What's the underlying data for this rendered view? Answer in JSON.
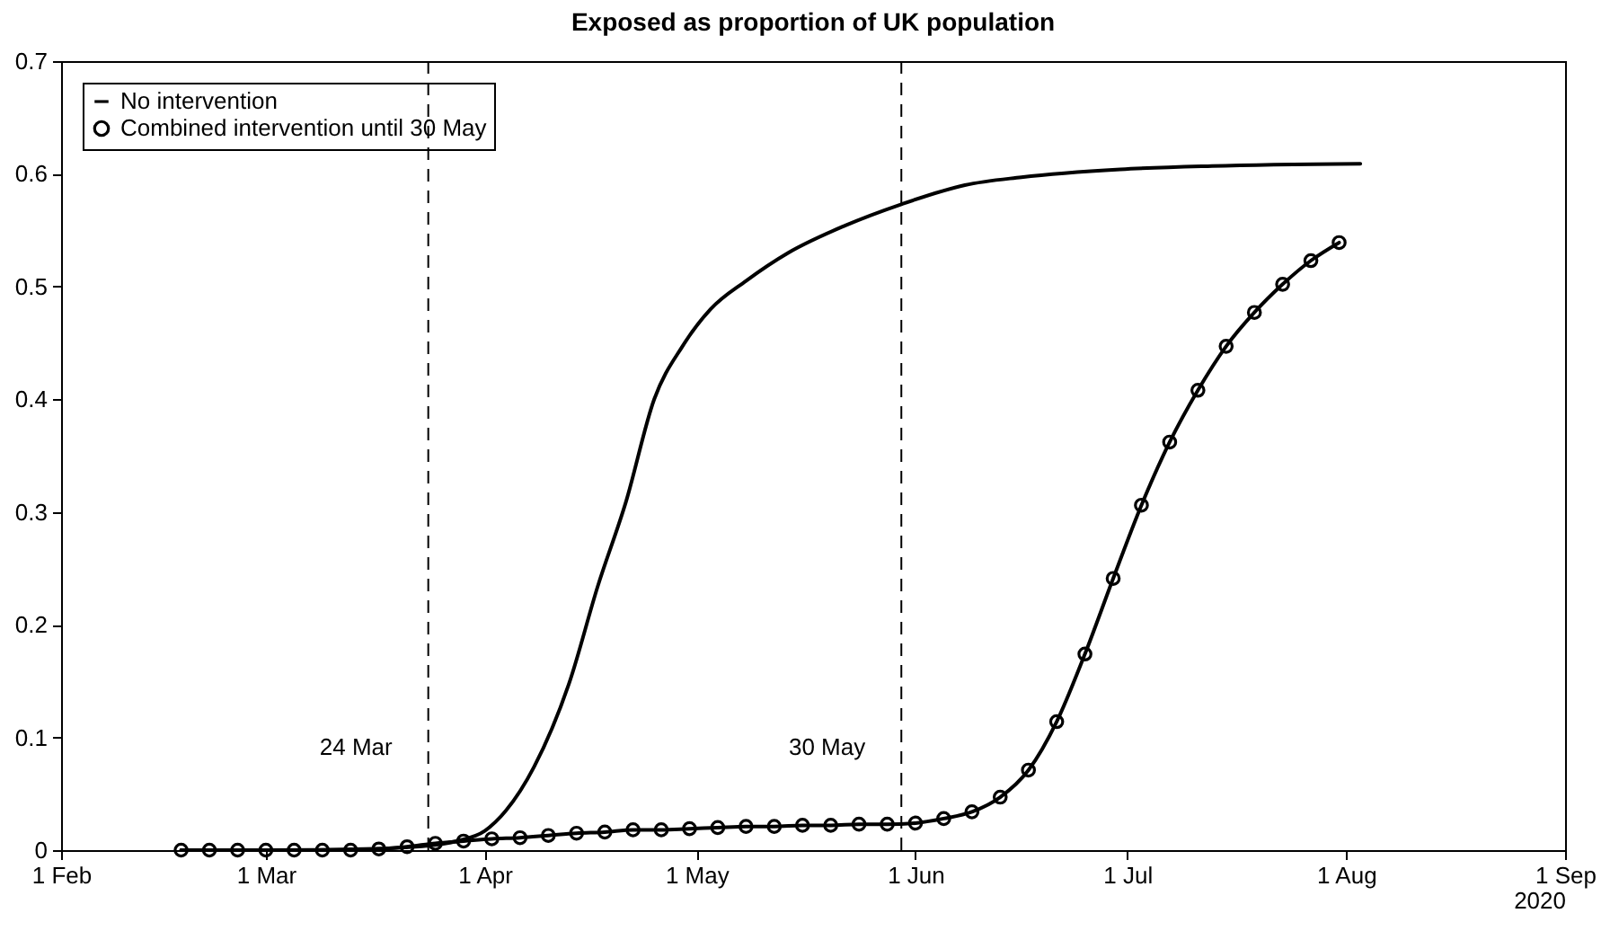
{
  "chart_data": {
    "type": "line",
    "title": "Exposed as proportion of UK population",
    "xlabel": "2020",
    "xlim": [
      "2020-02-01",
      "2020-09-01"
    ],
    "xticks": [
      {
        "value": "2020-02-01",
        "label": "1 Feb"
      },
      {
        "value": "2020-03-01",
        "label": "1 Mar"
      },
      {
        "value": "2020-04-01",
        "label": "1 Apr"
      },
      {
        "value": "2020-05-01",
        "label": "1 May"
      },
      {
        "value": "2020-06-01",
        "label": "1 Jun"
      },
      {
        "value": "2020-07-01",
        "label": "1 Jul"
      },
      {
        "value": "2020-08-01",
        "label": "1 Aug"
      },
      {
        "value": "2020-09-01",
        "label": "1 Sep"
      }
    ],
    "ylim": [
      0,
      0.7
    ],
    "yticks": [
      0,
      0.1,
      0.2,
      0.3,
      0.4,
      0.5,
      0.6,
      0.7
    ],
    "grid": false,
    "legend": "top left",
    "line_style": "solid",
    "series": [
      {
        "name": "No intervention",
        "color": "#000000",
        "marker": "none",
        "x": [
          "2020-02-18",
          "2020-03-01",
          "2020-03-15",
          "2020-03-24",
          "2020-03-28",
          "2020-04-01",
          "2020-04-04",
          "2020-04-08",
          "2020-04-13",
          "2020-04-17",
          "2020-04-21",
          "2020-04-25",
          "2020-04-29",
          "2020-05-03",
          "2020-05-08",
          "2020-05-14",
          "2020-05-22",
          "2020-05-30",
          "2020-06-08",
          "2020-06-16",
          "2020-06-30",
          "2020-07-13",
          "2020-08-03"
        ],
        "values": [
          0,
          0,
          0.001,
          0.004,
          0.008,
          0.017,
          0.035,
          0.074,
          0.149,
          0.234,
          0.309,
          0.4,
          0.447,
          0.48,
          0.505,
          0.53,
          0.554,
          0.573,
          0.59,
          0.597,
          0.604,
          0.607,
          0.609
        ]
      },
      {
        "name": "Combined intervention until 30 May",
        "color": "#000000",
        "marker": "circle",
        "x": [
          "2020-02-18",
          "2020-02-22",
          "2020-02-26",
          "2020-03-01",
          "2020-03-05",
          "2020-03-09",
          "2020-03-13",
          "2020-03-17",
          "2020-03-21",
          "2020-03-25",
          "2020-03-29",
          "2020-04-02",
          "2020-04-06",
          "2020-04-10",
          "2020-04-14",
          "2020-04-18",
          "2020-04-22",
          "2020-04-26",
          "2020-04-30",
          "2020-05-04",
          "2020-05-08",
          "2020-05-12",
          "2020-05-16",
          "2020-05-20",
          "2020-05-24",
          "2020-05-28",
          "2020-06-01",
          "2020-06-05",
          "2020-06-09",
          "2020-06-13",
          "2020-06-17",
          "2020-06-21",
          "2020-06-25",
          "2020-06-29",
          "2020-07-03",
          "2020-07-07",
          "2020-07-11",
          "2020-07-15",
          "2020-07-19",
          "2020-07-23",
          "2020-07-27",
          "2020-07-31"
        ],
        "values": [
          0,
          0,
          0,
          0,
          0,
          0,
          0,
          0.001,
          0.003,
          0.006,
          0.008,
          0.01,
          0.011,
          0.013,
          0.015,
          0.016,
          0.018,
          0.018,
          0.019,
          0.02,
          0.021,
          0.021,
          0.022,
          0.022,
          0.023,
          0.023,
          0.024,
          0.028,
          0.034,
          0.047,
          0.071,
          0.114,
          0.174,
          0.241,
          0.306,
          0.362,
          0.408,
          0.447,
          0.477,
          0.502,
          0.523,
          0.539
        ]
      }
    ],
    "ref_lines": [
      {
        "axis": "x",
        "value": "2020-03-24",
        "label": "24 Mar",
        "line_style": "dashed"
      },
      {
        "axis": "x",
        "value": "2020-05-30",
        "label": "30 May",
        "line_style": "dashed"
      }
    ]
  }
}
